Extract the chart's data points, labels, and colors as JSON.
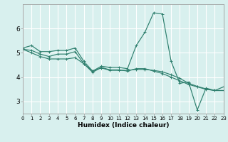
{
  "xlabel": "Humidex (Indice chaleur)",
  "bg_color": "#d8f0ee",
  "line_color": "#2e7f6e",
  "grid_color": "#ffffff",
  "x": [
    0,
    1,
    2,
    3,
    4,
    5,
    6,
    7,
    8,
    9,
    10,
    11,
    12,
    13,
    14,
    15,
    16,
    17,
    18,
    19,
    20,
    21,
    22,
    23
  ],
  "line1": [
    5.2,
    5.3,
    5.05,
    5.05,
    5.1,
    5.1,
    5.2,
    4.65,
    4.25,
    4.45,
    4.4,
    4.4,
    4.35,
    5.3,
    5.85,
    6.65,
    6.6,
    4.65,
    3.75,
    3.8,
    2.65,
    3.55,
    3.45,
    3.6
  ],
  "line2": [
    5.15,
    5.1,
    4.95,
    4.85,
    4.95,
    4.95,
    5.05,
    4.55,
    4.2,
    4.4,
    4.3,
    4.3,
    4.25,
    4.35,
    4.35,
    4.25,
    4.15,
    4.0,
    3.85,
    3.7,
    3.6,
    3.5,
    3.45,
    3.45
  ],
  "line3": [
    5.15,
    5.0,
    4.85,
    4.75,
    4.75,
    4.75,
    4.8,
    4.55,
    4.25,
    4.38,
    4.28,
    4.28,
    4.28,
    4.32,
    4.32,
    4.28,
    4.22,
    4.1,
    3.95,
    3.75,
    3.62,
    3.52,
    3.45,
    3.45
  ],
  "xlim": [
    0,
    23
  ],
  "ylim": [
    2.5,
    7.0
  ],
  "yticks": [
    3,
    4,
    5,
    6
  ],
  "xtick_labels": [
    "0",
    "1",
    "2",
    "3",
    "4",
    "5",
    "6",
    "7",
    "8",
    "9",
    "1011",
    "1213",
    "1415",
    "1617",
    "1819",
    "2021",
    "2223"
  ],
  "xtick_fontsize": 5.0,
  "ytick_fontsize": 6.5,
  "xlabel_fontsize": 6.5,
  "lw": 0.85,
  "ms": 2.2
}
